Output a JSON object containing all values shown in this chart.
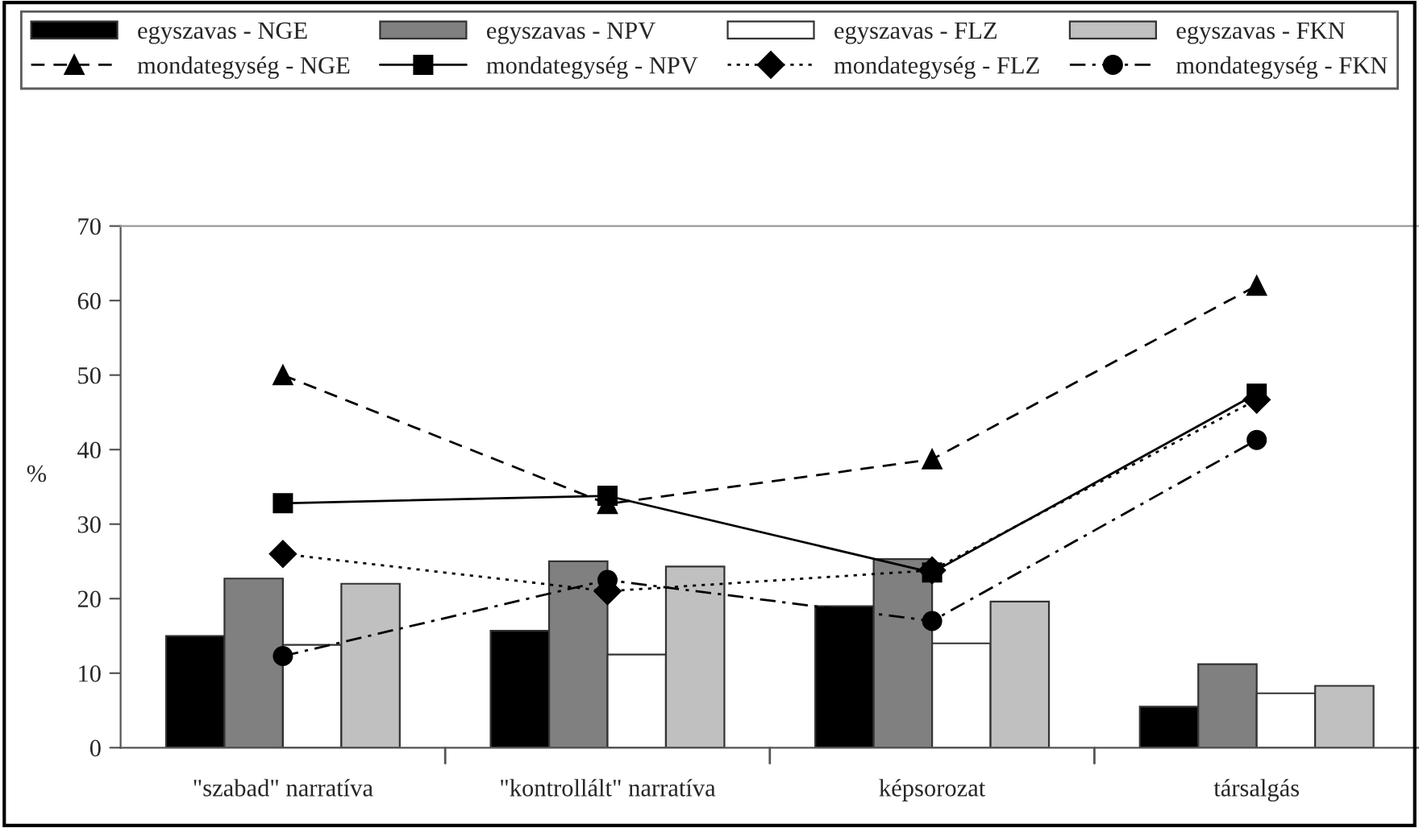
{
  "chart_data": {
    "type": "bar",
    "ylabel": "%",
    "categories": [
      "\"szabad\" narratíva",
      "\"kontrollált\" narratíva",
      "képsorozat",
      "társalgás"
    ],
    "series": [
      {
        "name": "egyszavas - NGE",
        "color": "#000000",
        "values": [
          15.0,
          15.7,
          19.0,
          5.5
        ]
      },
      {
        "name": "egyszavas - NPV",
        "color": "#808080",
        "values": [
          22.7,
          25.0,
          25.3,
          11.2
        ]
      },
      {
        "name": "egyszavas - FLZ",
        "color": "#ffffff",
        "values": [
          13.8,
          12.5,
          14.0,
          7.3
        ]
      },
      {
        "name": "egyszavas - FKN",
        "color": "#c0c0c0",
        "values": [
          22.0,
          24.3,
          19.6,
          8.3
        ]
      },
      {
        "name": "mondategység - NGE",
        "type": "line",
        "color": "#000000",
        "marker": "triangle",
        "line_style": "dashed",
        "values": [
          50.0,
          32.7,
          38.7,
          62.0
        ]
      },
      {
        "name": "mondategység - NPV",
        "type": "line",
        "color": "#000000",
        "marker": "square",
        "line_style": "solid",
        "values": [
          32.8,
          33.8,
          23.5,
          47.5
        ]
      },
      {
        "name": "mondategység - FLZ",
        "type": "line",
        "color": "#000000",
        "marker": "diamond",
        "line_style": "dotted",
        "values": [
          26.0,
          21.0,
          23.8,
          46.7
        ]
      },
      {
        "name": "mondategység - FKN",
        "type": "line",
        "color": "#000000",
        "marker": "circle",
        "line_style": "dashdot",
        "values": [
          12.3,
          22.5,
          17.0,
          41.3
        ]
      }
    ],
    "ylim": [
      0,
      70
    ],
    "yticks": [
      0,
      10,
      20,
      30,
      40,
      50,
      60,
      70
    ],
    "grid": false,
    "legend": "top"
  }
}
